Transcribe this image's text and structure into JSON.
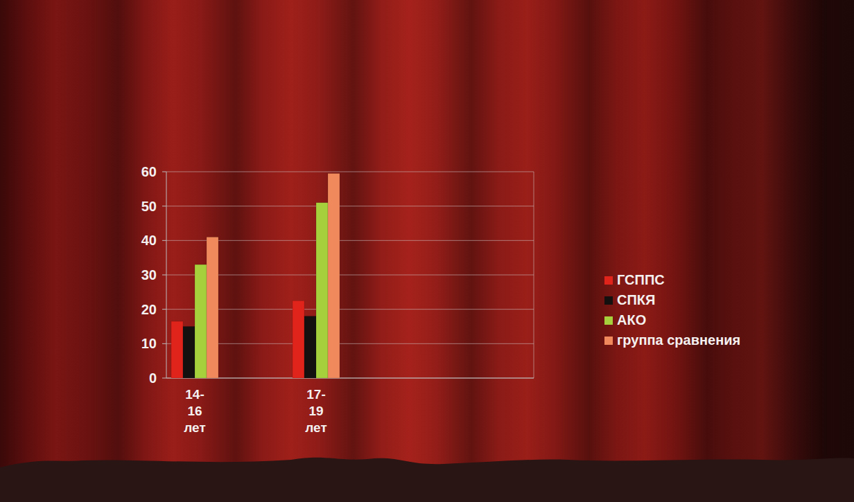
{
  "chart_data": {
    "type": "bar",
    "categories": [
      "14-16 лет",
      "17-19 лет"
    ],
    "series": [
      {
        "name": "ГСППС",
        "color": "#e0231b",
        "values": [
          16.5,
          22.5
        ]
      },
      {
        "name": "СПКЯ",
        "color": "#141010",
        "values": [
          15,
          18
        ]
      },
      {
        "name": "АКО",
        "color": "#a6d13c",
        "values": [
          33,
          51
        ]
      },
      {
        "name": "группа сравнения",
        "color": "#f08a5c",
        "values": [
          41,
          59.5
        ]
      }
    ],
    "ylim": [
      0,
      60
    ],
    "yticks": [
      0,
      10,
      20,
      30,
      40,
      50,
      60
    ],
    "grid": true,
    "legend": "right"
  }
}
